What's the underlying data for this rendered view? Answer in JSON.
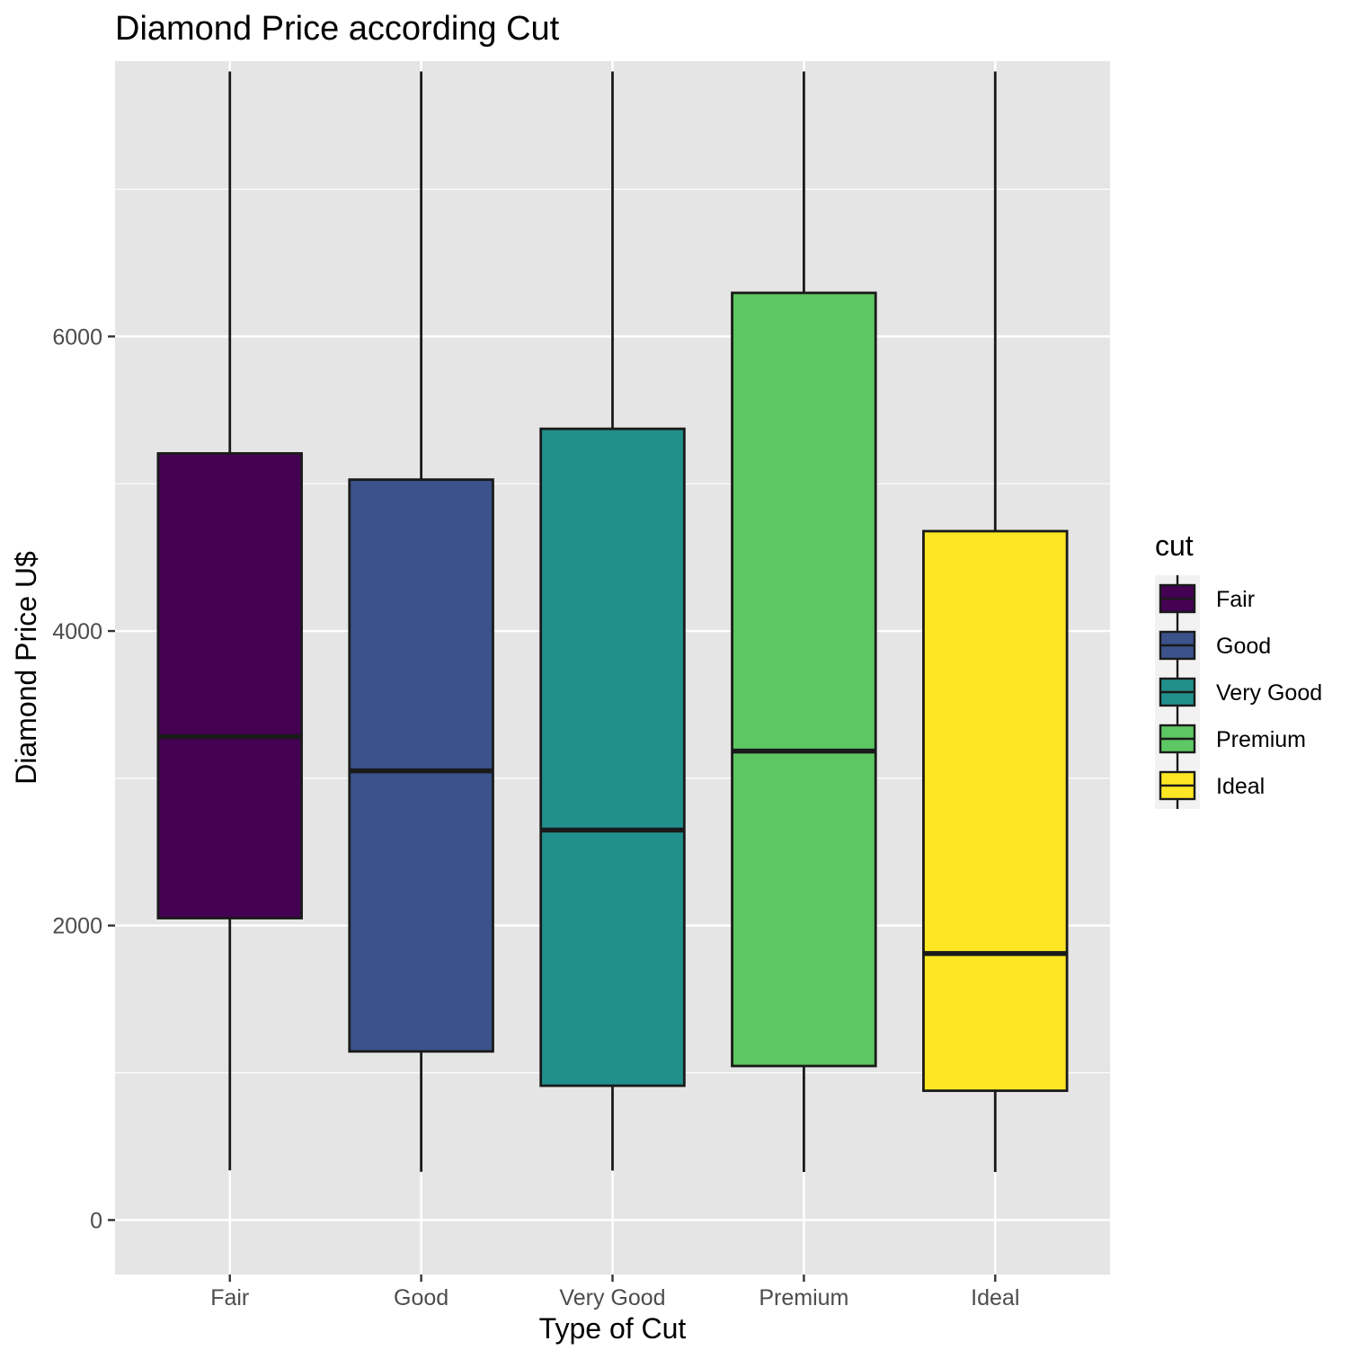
{
  "chart_data": {
    "type": "box",
    "title": "Diamond Price according Cut",
    "xlabel": "Type of Cut",
    "ylabel": "Diamond Price U$",
    "categories": [
      "Fair",
      "Good",
      "Very Good",
      "Premium",
      "Ideal"
    ],
    "boxes": [
      {
        "category": "Fair",
        "whisker_low": 337,
        "q1": 2050,
        "median": 3282,
        "q3": 5206,
        "whisker_high": 7800,
        "color": "#440154"
      },
      {
        "category": "Good",
        "whisker_low": 327,
        "q1": 1145,
        "median": 3050,
        "q3": 5028,
        "whisker_high": 7800,
        "color": "#3b528b"
      },
      {
        "category": "Very Good",
        "whisker_low": 336,
        "q1": 912,
        "median": 2648,
        "q3": 5373,
        "whisker_high": 7800,
        "color": "#21908c"
      },
      {
        "category": "Premium",
        "whisker_low": 326,
        "q1": 1046,
        "median": 3185,
        "q3": 6296,
        "whisker_high": 7800,
        "color": "#5dc863"
      },
      {
        "category": "Ideal",
        "whisker_low": 326,
        "q1": 878,
        "median": 1810,
        "q3": 4678,
        "whisker_high": 7800,
        "color": "#fde725"
      }
    ],
    "yticks": [
      0,
      2000,
      4000,
      6000
    ],
    "ylim": [
      -370,
      7870
    ],
    "grid": true,
    "legend": {
      "title": "cut",
      "position": "right",
      "entries": [
        "Fair",
        "Good",
        "Very Good",
        "Premium",
        "Ideal"
      ]
    }
  }
}
